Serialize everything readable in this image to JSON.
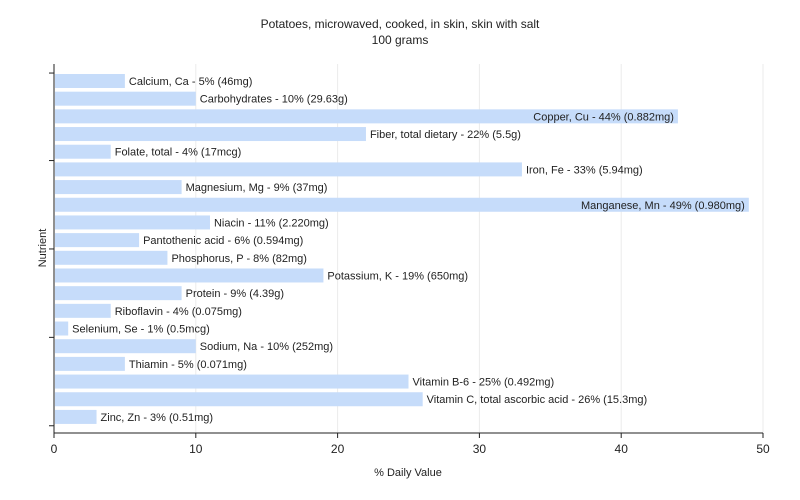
{
  "chart_data": {
    "type": "bar",
    "orientation": "horizontal",
    "title": "Potatoes, microwaved, cooked, in skin, skin with salt",
    "subtitle": "100 grams",
    "xlabel": "% Daily Value",
    "ylabel": "Nutrient",
    "xlim": [
      0,
      50
    ],
    "xticks": [
      0,
      10,
      20,
      30,
      40,
      50
    ],
    "grid": true,
    "bar_color": "#c6dcfa",
    "bars": [
      {
        "label": "Calcium, Ca - 5% (46mg)",
        "value": 5
      },
      {
        "label": "Carbohydrates - 10% (29.63g)",
        "value": 10
      },
      {
        "label": "Copper, Cu - 44% (0.882mg)",
        "value": 44
      },
      {
        "label": "Fiber, total dietary - 22% (5.5g)",
        "value": 22
      },
      {
        "label": "Folate, total - 4% (17mcg)",
        "value": 4
      },
      {
        "label": "Iron, Fe - 33% (5.94mg)",
        "value": 33
      },
      {
        "label": "Magnesium, Mg - 9% (37mg)",
        "value": 9
      },
      {
        "label": "Manganese, Mn - 49% (0.980mg)",
        "value": 49
      },
      {
        "label": "Niacin - 11% (2.220mg)",
        "value": 11
      },
      {
        "label": "Pantothenic acid - 6% (0.594mg)",
        "value": 6
      },
      {
        "label": "Phosphorus, P - 8% (82mg)",
        "value": 8
      },
      {
        "label": "Potassium, K - 19% (650mg)",
        "value": 19
      },
      {
        "label": "Protein - 9% (4.39g)",
        "value": 9
      },
      {
        "label": "Riboflavin - 4% (0.075mg)",
        "value": 4
      },
      {
        "label": "Selenium, Se - 1% (0.5mcg)",
        "value": 1
      },
      {
        "label": "Sodium, Na - 10% (252mg)",
        "value": 10
      },
      {
        "label": "Thiamin - 5% (0.071mg)",
        "value": 5
      },
      {
        "label": "Vitamin B-6 - 25% (0.492mg)",
        "value": 25
      },
      {
        "label": "Vitamin C, total ascorbic acid - 26% (15.3mg)",
        "value": 26
      },
      {
        "label": "Zinc, Zn - 3% (0.51mg)",
        "value": 3
      }
    ]
  }
}
